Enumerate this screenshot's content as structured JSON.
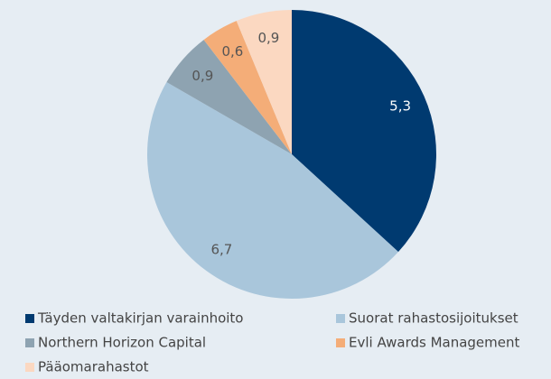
{
  "chart_data": {
    "type": "pie",
    "categories": [
      "Täyden valtakirjan varainhoito",
      "Suorat rahastosijoitukset",
      "Northern Horizon Capital",
      "Evli Awards Management",
      "Pääomarahastot"
    ],
    "values": [
      5.3,
      6.7,
      0.9,
      0.6,
      0.9
    ],
    "value_labels": [
      "5,3",
      "6,7",
      "0,9",
      "0,6",
      "0,9"
    ],
    "colors": [
      "#003a70",
      "#a9c6db",
      "#8ea3b1",
      "#f4ad78",
      "#fbd8c1"
    ]
  }
}
